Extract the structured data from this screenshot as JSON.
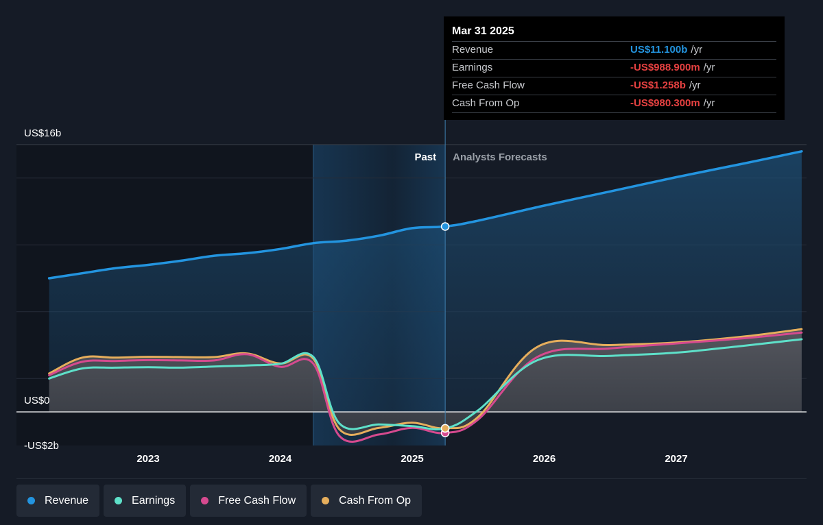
{
  "tooltip": {
    "date": "Mar 31 2025",
    "rows": [
      {
        "label": "Revenue",
        "value": "US$11.100b",
        "unit": "/yr",
        "color": "#2394df"
      },
      {
        "label": "Earnings",
        "value": "-US$988.900m",
        "unit": "/yr",
        "color": "#e64141"
      },
      {
        "label": "Free Cash Flow",
        "value": "-US$1.258b",
        "unit": "/yr",
        "color": "#e64141"
      },
      {
        "label": "Cash From Op",
        "value": "-US$980.300m",
        "unit": "/yr",
        "color": "#e64141"
      }
    ]
  },
  "legend": [
    {
      "label": "Revenue",
      "color": "#2394df"
    },
    {
      "label": "Earnings",
      "color": "#5ee0c9"
    },
    {
      "label": "Free Cash Flow",
      "color": "#d64a8f"
    },
    {
      "label": "Cash From Op",
      "color": "#e6ae5c"
    }
  ],
  "chart_data": {
    "type": "line",
    "y_tick_labels": [
      "US$16b",
      "US$0",
      "-US$2b"
    ],
    "x_tick_labels": [
      "2023",
      "2024",
      "2025",
      "2026",
      "2027"
    ],
    "region_labels": {
      "past": "Past",
      "forecast": "Analysts Forecasts"
    },
    "ylim": [
      -4,
      16
    ],
    "xlim": [
      2022.0,
      2028.0
    ],
    "past_end": 2025.25,
    "highlight_start": 2024.25,
    "series": [
      {
        "name": "Revenue",
        "color": "#2394df",
        "points": [
          [
            2022.25,
            8.0
          ],
          [
            2022.5,
            8.3
          ],
          [
            2022.75,
            8.6
          ],
          [
            2023.0,
            8.8
          ],
          [
            2023.25,
            9.05
          ],
          [
            2023.5,
            9.35
          ],
          [
            2023.75,
            9.5
          ],
          [
            2024.0,
            9.75
          ],
          [
            2024.25,
            10.1
          ],
          [
            2024.5,
            10.25
          ],
          [
            2024.75,
            10.55
          ],
          [
            2025.0,
            11.0
          ],
          [
            2025.25,
            11.1
          ],
          [
            2025.5,
            11.45
          ],
          [
            2026.0,
            12.35
          ],
          [
            2026.5,
            13.2
          ],
          [
            2027.0,
            14.05
          ],
          [
            2027.5,
            14.85
          ],
          [
            2027.95,
            15.6
          ]
        ]
      },
      {
        "name": "Earnings",
        "color": "#5ee0c9",
        "points": [
          [
            2022.25,
            2.0
          ],
          [
            2022.5,
            2.6
          ],
          [
            2022.75,
            2.65
          ],
          [
            2023.0,
            2.68
          ],
          [
            2023.25,
            2.65
          ],
          [
            2023.5,
            2.72
          ],
          [
            2023.75,
            2.78
          ],
          [
            2024.0,
            2.88
          ],
          [
            2024.25,
            3.3
          ],
          [
            2024.45,
            -0.7
          ],
          [
            2024.75,
            -0.75
          ],
          [
            2025.0,
            -0.85
          ],
          [
            2025.25,
            -0.99
          ],
          [
            2025.5,
            0.1
          ],
          [
            2025.95,
            3.1
          ],
          [
            2026.5,
            3.35
          ],
          [
            2027.0,
            3.55
          ],
          [
            2027.5,
            3.95
          ],
          [
            2027.95,
            4.35
          ]
        ]
      },
      {
        "name": "Free Cash Flow",
        "color": "#d64a8f",
        "points": [
          [
            2022.25,
            2.2
          ],
          [
            2022.5,
            3.0
          ],
          [
            2022.75,
            3.05
          ],
          [
            2023.0,
            3.1
          ],
          [
            2023.25,
            3.08
          ],
          [
            2023.5,
            3.08
          ],
          [
            2023.75,
            3.45
          ],
          [
            2024.0,
            2.7
          ],
          [
            2024.25,
            2.9
          ],
          [
            2024.45,
            -1.45
          ],
          [
            2024.75,
            -1.35
          ],
          [
            2025.0,
            -0.95
          ],
          [
            2025.25,
            -1.26
          ],
          [
            2025.5,
            -0.45
          ],
          [
            2025.95,
            3.3
          ],
          [
            2026.5,
            3.8
          ],
          [
            2027.0,
            4.1
          ],
          [
            2027.5,
            4.4
          ],
          [
            2027.95,
            4.75
          ]
        ]
      },
      {
        "name": "Cash From Op",
        "color": "#e6ae5c",
        "points": [
          [
            2022.25,
            2.3
          ],
          [
            2022.5,
            3.25
          ],
          [
            2022.75,
            3.25
          ],
          [
            2023.0,
            3.3
          ],
          [
            2023.25,
            3.28
          ],
          [
            2023.5,
            3.28
          ],
          [
            2023.75,
            3.5
          ],
          [
            2024.0,
            2.9
          ],
          [
            2024.25,
            3.2
          ],
          [
            2024.45,
            -1.05
          ],
          [
            2024.75,
            -0.95
          ],
          [
            2025.0,
            -0.65
          ],
          [
            2025.25,
            -0.98
          ],
          [
            2025.5,
            -0.3
          ],
          [
            2025.95,
            3.9
          ],
          [
            2026.5,
            4.0
          ],
          [
            2027.0,
            4.15
          ],
          [
            2027.5,
            4.5
          ],
          [
            2027.95,
            4.95
          ]
        ]
      }
    ]
  }
}
